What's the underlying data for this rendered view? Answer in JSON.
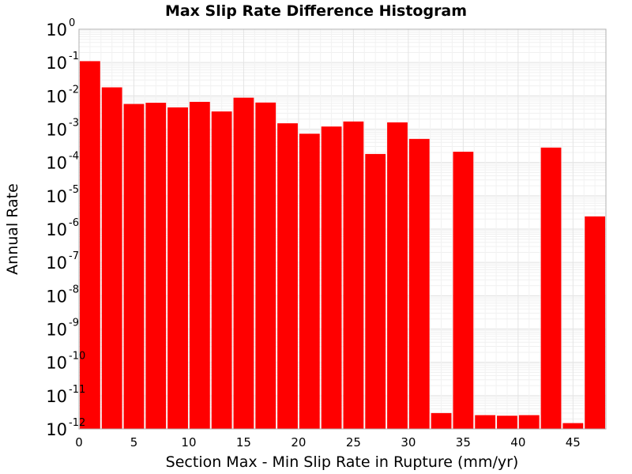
{
  "chart_data": {
    "type": "bar",
    "title": "Max Slip Rate Difference Histogram",
    "xlabel": "Section Max - Min Slip Rate in Rupture (mm/yr)",
    "ylabel": "Annual Rate",
    "y_scale": "log",
    "ylim": [
      1e-12,
      1
    ],
    "xlim": [
      0,
      48
    ],
    "bin_width": 2,
    "grid": true,
    "bar_color": "#ff0000",
    "x_ticks": [
      0,
      5,
      10,
      15,
      20,
      25,
      30,
      35,
      40,
      45
    ],
    "y_ticks": [
      {
        "base": "10",
        "exp": "0"
      },
      {
        "base": "10",
        "exp": "-1"
      },
      {
        "base": "10",
        "exp": "-2"
      },
      {
        "base": "10",
        "exp": "-3"
      },
      {
        "base": "10",
        "exp": "-4"
      },
      {
        "base": "10",
        "exp": "-5"
      },
      {
        "base": "10",
        "exp": "-6"
      },
      {
        "base": "10",
        "exp": "-7"
      },
      {
        "base": "10",
        "exp": "-8"
      },
      {
        "base": "10",
        "exp": "-9"
      },
      {
        "base": "10",
        "exp": "-10"
      },
      {
        "base": "10",
        "exp": "-11"
      },
      {
        "base": "10",
        "exp": "-12"
      }
    ],
    "bins": [
      {
        "x": 1,
        "value": 0.11
      },
      {
        "x": 3,
        "value": 0.018
      },
      {
        "x": 5,
        "value": 0.0057
      },
      {
        "x": 7,
        "value": 0.0062
      },
      {
        "x": 9,
        "value": 0.0045
      },
      {
        "x": 11,
        "value": 0.0066
      },
      {
        "x": 13,
        "value": 0.0034
      },
      {
        "x": 15,
        "value": 0.0088
      },
      {
        "x": 17,
        "value": 0.0063
      },
      {
        "x": 19,
        "value": 0.0015
      },
      {
        "x": 21,
        "value": 0.00073
      },
      {
        "x": 23,
        "value": 0.0012
      },
      {
        "x": 25,
        "value": 0.0017
      },
      {
        "x": 27,
        "value": 0.00018
      },
      {
        "x": 29,
        "value": 0.0016
      },
      {
        "x": 31,
        "value": 0.00051
      },
      {
        "x": 33,
        "value": 3e-12
      },
      {
        "x": 35,
        "value": 0.00021
      },
      {
        "x": 37,
        "value": 2.6e-12
      },
      {
        "x": 39,
        "value": 2.5e-12
      },
      {
        "x": 41,
        "value": 2.6e-12
      },
      {
        "x": 43,
        "value": 0.00028
      },
      {
        "x": 45,
        "value": 1.5e-12
      },
      {
        "x": 47,
        "value": 2.4e-06
      }
    ]
  }
}
